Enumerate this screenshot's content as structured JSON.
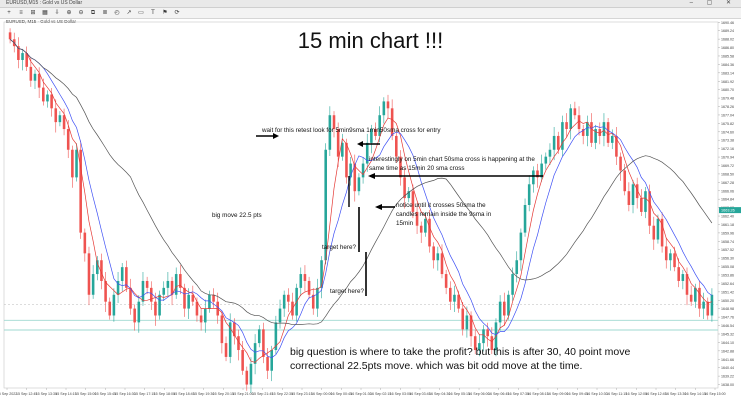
{
  "window": {
    "title": "EURUSD,M15 : Gold vs US Dollar",
    "controls": "– ▢ ✕"
  },
  "toolbar": {
    "buttons": [
      "+",
      "≡",
      "⊞",
      "▦",
      "⇩",
      "⊕",
      "⊖",
      "⧉",
      "≣",
      "◴",
      "↗",
      "▭",
      "T",
      "⚑",
      "⟳"
    ]
  },
  "chart_info": {
    "symbol_line": "EURUSD, M15 · Gold vs US Dollar"
  },
  "annotations": {
    "title": "15 min chart !!!",
    "retest": "wait for this retest look for 5min9sma 1min50sma cross for entry",
    "interesting": "interestingly on 5min chart 50sma cross is happening at the same time as 15min 20 sma cross",
    "notice": "notice until it crosses 50sma the candles remain inside the 9sma in 15min",
    "big_move": "big move 22.5 pts",
    "target1": "target here?",
    "target2": "target here?",
    "question": "big question is where to take the profit? but this is after 30, 40 point move correctional 22.5pts move. which was bit odd move at the time."
  },
  "colors": {
    "bull": "#26a69a",
    "bear": "#ef5350",
    "sma_fast": "#e53935",
    "sma_mid": "#3f51f5",
    "sma_slow": "#555555",
    "hline": "#9fd8d0"
  },
  "chart_data": {
    "type": "candlestick",
    "ylim": [
      1637.5,
      1690.5
    ],
    "y_ticks": [
      "1690.46",
      "1689.24",
      "1688.02",
      "1686.80",
      "1685.58",
      "1684.36",
      "1683.14",
      "1681.92",
      "1680.70",
      "1679.48",
      "1678.26",
      "1677.04",
      "1675.82",
      "1674.60",
      "1673.38",
      "1672.16",
      "1670.94",
      "1669.72",
      "1668.50",
      "1667.28",
      "1666.06",
      "1664.84",
      "1663.62",
      "1662.40",
      "1661.18",
      "1659.96",
      "1658.74",
      "1657.52",
      "1656.30",
      "1655.08",
      "1653.86",
      "1652.64",
      "1651.42",
      "1650.20",
      "1648.98",
      "1647.76",
      "1646.54",
      "1645.32",
      "1644.10",
      "1642.88",
      "1641.66",
      "1640.44",
      "1639.22",
      "1638.00"
    ],
    "x_ticks": [
      "15 Sep 2022",
      "15 Sep 12:45",
      "15 Sep 13:30",
      "15 Sep 14:15",
      "15 Sep 15:00",
      "15 Sep 15:45",
      "15 Sep 16:30",
      "15 Sep 17:15",
      "15 Sep 18:00",
      "15 Sep 18:45",
      "15 Sep 19:30",
      "15 Sep 20:15",
      "15 Sep 21:00",
      "15 Sep 21:45",
      "15 Sep 22:30",
      "15 Sep 23:15",
      "16 Sep 00:00",
      "16 Sep 00:45",
      "16 Sep 01:30",
      "16 Sep 02:15",
      "16 Sep 03:00",
      "16 Sep 03:45",
      "16 Sep 04:30",
      "16 Sep 05:15",
      "16 Sep 06:00",
      "16 Sep 06:45",
      "16 Sep 07:30",
      "16 Sep 08:15",
      "16 Sep 09:00",
      "16 Sep 09:45",
      "16 Sep 10:30",
      "16 Sep 11:15",
      "16 Sep 12:00",
      "16 Sep 12:45",
      "16 Sep 13:30",
      "16 Sep 14:15",
      "16 Sep 15:00"
    ],
    "price_label": "1663.26",
    "closes": [
      1688,
      1687,
      1685,
      1686,
      1684,
      1682,
      1683,
      1681,
      1679,
      1680,
      1678,
      1676,
      1677,
      1675,
      1672,
      1668,
      1672,
      1660,
      1657,
      1651,
      1654,
      1656,
      1653,
      1650,
      1648,
      1651,
      1653,
      1655,
      1652,
      1649,
      1647,
      1650,
      1653,
      1652,
      1650,
      1648,
      1651,
      1652,
      1653,
      1651,
      1654,
      1652,
      1649,
      1651,
      1650,
      1648,
      1647,
      1649,
      1651,
      1650,
      1648,
      1644,
      1642,
      1647,
      1645,
      1643,
      1640,
      1638,
      1641,
      1644,
      1646,
      1642,
      1640,
      1643,
      1647,
      1649,
      1651,
      1650,
      1648,
      1652,
      1654,
      1653,
      1651,
      1649,
      1652,
      1656,
      1672,
      1677,
      1675,
      1671,
      1673,
      1668,
      1670,
      1666,
      1668,
      1670,
      1673,
      1675,
      1674,
      1677,
      1679,
      1678,
      1674,
      1671,
      1668,
      1665,
      1666,
      1663,
      1661,
      1660,
      1662,
      1658,
      1656,
      1657,
      1654,
      1652,
      1650,
      1651,
      1649,
      1646,
      1648,
      1645,
      1643,
      1644,
      1646,
      1645,
      1643,
      1647,
      1650,
      1648,
      1651,
      1654,
      1656,
      1660,
      1664,
      1667,
      1669,
      1668,
      1670,
      1671,
      1672,
      1674,
      1672,
      1676,
      1675,
      1678,
      1677,
      1675,
      1674,
      1676,
      1673,
      1675,
      1674,
      1676,
      1673,
      1674,
      1671,
      1669,
      1666,
      1664,
      1667,
      1665,
      1663,
      1666,
      1661,
      1659,
      1662,
      1658,
      1656,
      1657,
      1655,
      1653,
      1654,
      1651,
      1650,
      1652,
      1649,
      1650,
      1648,
      1651
    ]
  }
}
